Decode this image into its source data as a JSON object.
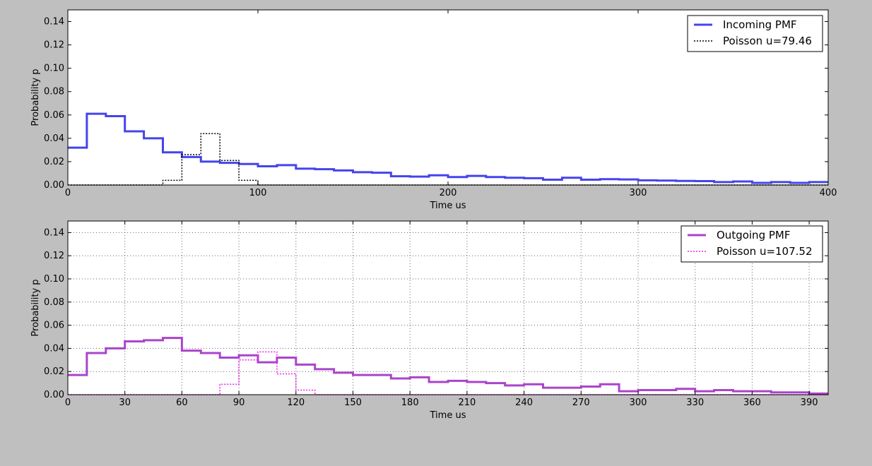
{
  "chart_data": [
    {
      "type": "line",
      "step": true,
      "xlabel": "Time us",
      "ylabel": "Probability p",
      "xlim": [
        0,
        400
      ],
      "ylim": [
        0,
        0.15
      ],
      "xticks": [
        0,
        100,
        200,
        300,
        400
      ],
      "yticks": [
        0.0,
        0.02,
        0.04,
        0.06,
        0.08,
        0.1,
        0.12,
        0.14
      ],
      "grid": false,
      "legend": "top-right",
      "x": [
        0,
        10,
        20,
        30,
        40,
        50,
        60,
        70,
        80,
        90,
        100,
        110,
        120,
        130,
        140,
        150,
        160,
        170,
        180,
        190,
        200,
        210,
        220,
        230,
        240,
        250,
        260,
        270,
        280,
        290,
        300,
        310,
        320,
        330,
        340,
        350,
        360,
        370,
        380,
        390
      ],
      "series": [
        {
          "name": "Incoming PMF",
          "color": "#4444ee",
          "style": "solid",
          "values": [
            0.032,
            0.061,
            0.059,
            0.046,
            0.04,
            0.028,
            0.024,
            0.02,
            0.019,
            0.018,
            0.016,
            0.017,
            0.014,
            0.0135,
            0.0125,
            0.011,
            0.0105,
            0.0075,
            0.0072,
            0.0083,
            0.0068,
            0.0078,
            0.0068,
            0.0062,
            0.0058,
            0.0045,
            0.0062,
            0.0045,
            0.005,
            0.0048,
            0.004,
            0.0038,
            0.0035,
            0.0033,
            0.0025,
            0.003,
            0.0018,
            0.0025,
            0.0018,
            0.0025
          ]
        },
        {
          "name": "Poisson u=79.46",
          "color": "#000000",
          "style": "dotted",
          "values": [
            0,
            0,
            0,
            0,
            0,
            0.004,
            0.026,
            0.044,
            0.021,
            0.004,
            0,
            0,
            0,
            0,
            0,
            0,
            0,
            0,
            0,
            0,
            0,
            0,
            0,
            0,
            0,
            0,
            0,
            0,
            0,
            0,
            0,
            0,
            0,
            0,
            0,
            0,
            0,
            0,
            0,
            0
          ]
        }
      ]
    },
    {
      "type": "line",
      "step": true,
      "xlabel": "Time us",
      "ylabel": "Probability p",
      "xlim": [
        0,
        400
      ],
      "ylim": [
        0,
        0.15
      ],
      "xticks": [
        0,
        30,
        60,
        90,
        120,
        150,
        180,
        210,
        240,
        270,
        300,
        330,
        360,
        390
      ],
      "yticks": [
        0.0,
        0.02,
        0.04,
        0.06,
        0.08,
        0.1,
        0.12,
        0.14
      ],
      "grid": true,
      "legend": "top-right",
      "x": [
        0,
        10,
        20,
        30,
        40,
        50,
        60,
        70,
        80,
        90,
        100,
        110,
        120,
        130,
        140,
        150,
        160,
        170,
        180,
        190,
        200,
        210,
        220,
        230,
        240,
        250,
        260,
        270,
        280,
        290,
        300,
        310,
        320,
        330,
        340,
        350,
        360,
        370,
        380,
        390
      ],
      "series": [
        {
          "name": "Outgoing PMF",
          "color": "#aa44cc",
          "style": "solid",
          "values": [
            0.017,
            0.036,
            0.04,
            0.046,
            0.047,
            0.049,
            0.038,
            0.036,
            0.032,
            0.034,
            0.028,
            0.032,
            0.026,
            0.022,
            0.019,
            0.017,
            0.017,
            0.014,
            0.015,
            0.011,
            0.012,
            0.011,
            0.01,
            0.008,
            0.009,
            0.006,
            0.006,
            0.007,
            0.009,
            0.003,
            0.004,
            0.004,
            0.005,
            0.003,
            0.004,
            0.003,
            0.003,
            0.002,
            0.002,
            0.001
          ]
        },
        {
          "name": "Poisson u=107.52",
          "color": "#ee22ee",
          "style": "dotted",
          "values": [
            0,
            0,
            0,
            0,
            0,
            0,
            0,
            0,
            0.009,
            0.03,
            0.037,
            0.018,
            0.004,
            0,
            0,
            0,
            0,
            0,
            0,
            0,
            0,
            0,
            0,
            0,
            0,
            0,
            0,
            0,
            0,
            0,
            0,
            0,
            0,
            0,
            0,
            0,
            0,
            0,
            0,
            0
          ]
        }
      ]
    }
  ]
}
